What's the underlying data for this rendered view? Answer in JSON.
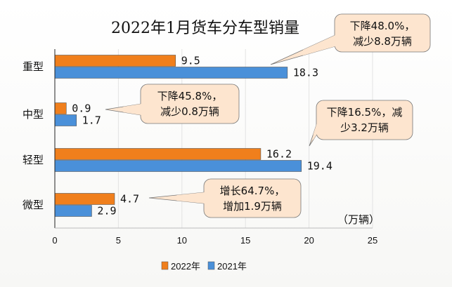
{
  "chart_data": {
    "type": "bar",
    "orientation": "horizontal",
    "title": "2022年1月货车分车型销量",
    "unit": "（万辆）",
    "categories": [
      "重型",
      "中型",
      "轻型",
      "微型"
    ],
    "series": [
      {
        "name": "2022年",
        "color": "#f07f1c",
        "values": [
          9.5,
          0.9,
          16.2,
          4.7
        ]
      },
      {
        "name": "2021年",
        "color": "#4a90d9",
        "values": [
          18.3,
          1.7,
          19.4,
          2.9
        ]
      }
    ],
    "value_labels": {
      "2022年": [
        "9.5",
        "0.9",
        "16.2",
        "4.7"
      ],
      "2021年": [
        "18.3",
        "1.7",
        "19.4",
        "2.9"
      ]
    },
    "xlim": [
      0,
      25
    ],
    "xticks": [
      "0",
      "5",
      "10",
      "15",
      "20",
      "25"
    ],
    "grid": true,
    "legend_position": "bottom",
    "annotations": [
      {
        "category": "重型",
        "lines": [
          "下降48.0%，",
          "减少8.8万辆"
        ]
      },
      {
        "category": "中型",
        "lines": [
          "下降45.8%，",
          "减少0.8万辆"
        ]
      },
      {
        "category": "轻型",
        "lines": [
          "下降16.5%，减",
          "少3.2万辆"
        ]
      },
      {
        "category": "微型",
        "lines": [
          "增长64.7%，",
          "增加1.9万辆"
        ]
      }
    ]
  }
}
